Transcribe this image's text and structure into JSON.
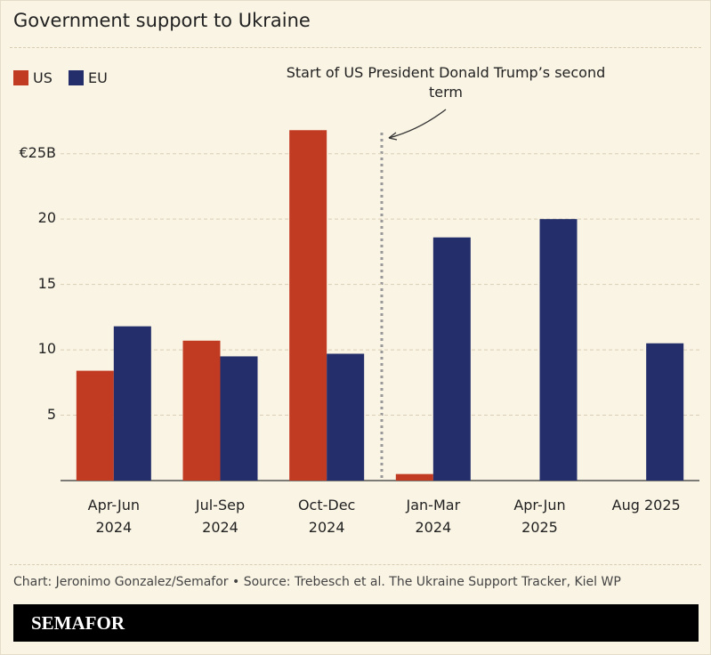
{
  "chart_data": {
    "type": "bar",
    "title": "Government support to Ukraine",
    "categories": [
      "Apr-Jun\n2024",
      "Jul-Sep\n2024",
      "Oct-Dec\n2024",
      "Jan-Mar\n2024",
      "Apr-Jun\n2025",
      "Aug 2025"
    ],
    "series": [
      {
        "name": "US",
        "color": "#c13a22",
        "values": [
          8.4,
          10.7,
          26.8,
          0.5,
          null,
          null
        ]
      },
      {
        "name": "EU",
        "color": "#232e6a",
        "values": [
          11.8,
          9.5,
          9.7,
          18.6,
          20.0,
          10.5
        ]
      }
    ],
    "ylim": [
      0,
      27.5
    ],
    "yticks": [
      5,
      10,
      15,
      20,
      {
        "value": 25,
        "label": "€25B"
      }
    ],
    "grid": true,
    "annotation": "Start of US President Donald Trump’s second term",
    "source": "Chart: Jeronimo Gonzalez/Semafor • Source: Trebesch et al. The Ukraine Support Tracker, Kiel WP",
    "brand": "SEMAFOR"
  }
}
